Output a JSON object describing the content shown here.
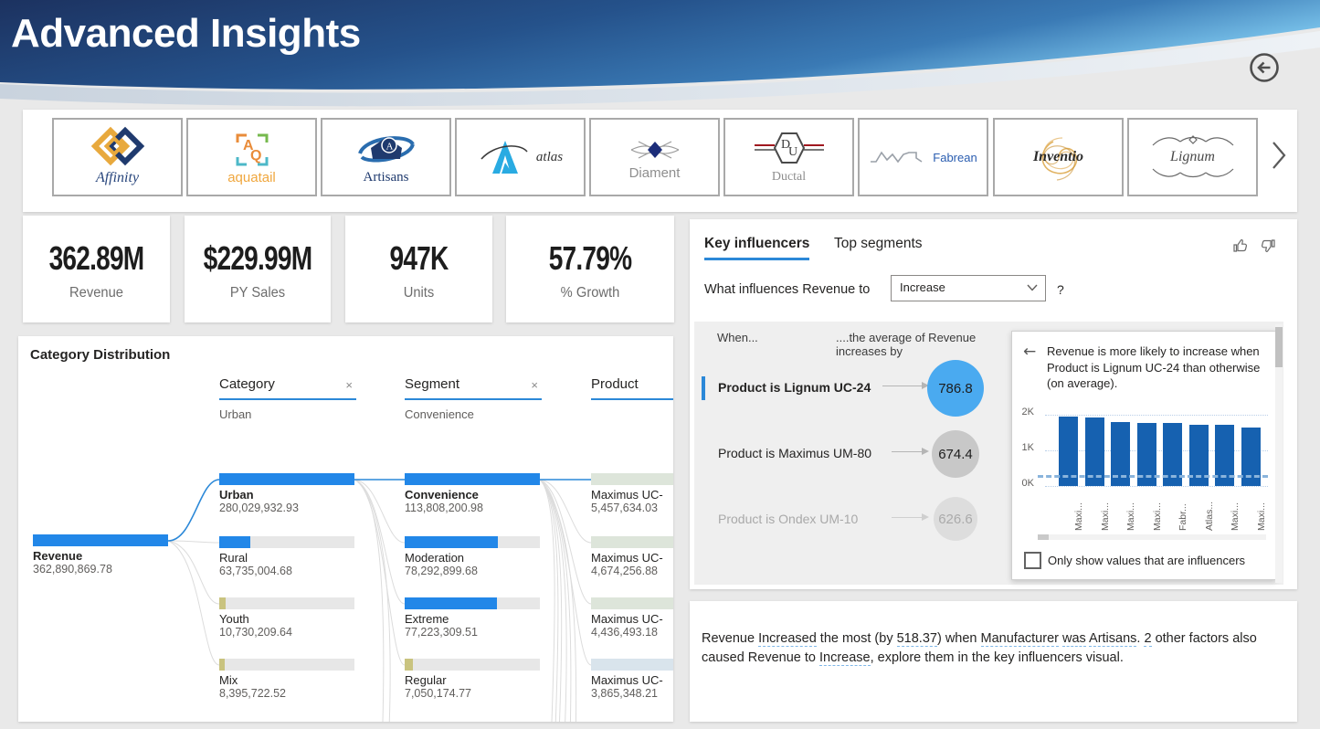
{
  "header": {
    "title": "Advanced Insights"
  },
  "logos": {
    "items": [
      {
        "name": "Affinity"
      },
      {
        "name": "aquatail"
      },
      {
        "name": "Artisans"
      },
      {
        "name": "atlas"
      },
      {
        "name": "Diament"
      },
      {
        "name": "Ductal"
      },
      {
        "name": "Fabrean"
      },
      {
        "name": "Inventio"
      },
      {
        "name": "Lignum"
      }
    ]
  },
  "kpis": [
    {
      "value": "362.89M",
      "label": "Revenue"
    },
    {
      "value": "$229.99M",
      "label": "PY Sales"
    },
    {
      "value": "947K",
      "label": "Units"
    },
    {
      "value": "57.79%",
      "label": "% Growth"
    }
  ],
  "decomposition_tree": {
    "title": "Category Distribution",
    "columns": [
      {
        "name": "Category",
        "selected": "Urban",
        "close": "×"
      },
      {
        "name": "Segment",
        "selected": "Convenience",
        "close": "×"
      },
      {
        "name": "Product",
        "selected": "",
        "close": ""
      }
    ],
    "root": {
      "label": "Revenue",
      "value": "362,890,869.78",
      "fill_pct": 100,
      "fill": "blue"
    },
    "categories": [
      {
        "label": "Urban",
        "value": "280,029,932.93",
        "fill_pct": 100,
        "fill": "blue"
      },
      {
        "label": "Rural",
        "value": "63,735,004.68",
        "fill_pct": 23,
        "fill": "blue"
      },
      {
        "label": "Youth",
        "value": "10,730,209.64",
        "fill_pct": 5,
        "fill": "tan"
      },
      {
        "label": "Mix",
        "value": "8,395,722.52",
        "fill_pct": 4,
        "fill": "tan"
      }
    ],
    "segments": [
      {
        "label": "Convenience",
        "value": "113,808,200.98",
        "fill_pct": 100,
        "fill": "blue"
      },
      {
        "label": "Moderation",
        "value": "78,292,899.68",
        "fill_pct": 69,
        "fill": "blue"
      },
      {
        "label": "Extreme",
        "value": "77,223,309.51",
        "fill_pct": 68,
        "fill": "blue"
      },
      {
        "label": "Regular",
        "value": "7,050,174.77",
        "fill_pct": 6,
        "fill": "tan"
      }
    ],
    "products": [
      {
        "label": "Maximus UC-",
        "value": "5,457,634.03",
        "fill_pct": 100,
        "fill": "sage"
      },
      {
        "label": "Maximus UC-",
        "value": "4,674,256.88",
        "fill_pct": 100,
        "fill": "sage"
      },
      {
        "label": "Maximus UC-",
        "value": "4,436,493.18",
        "fill_pct": 100,
        "fill": "sage"
      },
      {
        "label": "Maximus UC-",
        "value": "3,865,348.21",
        "fill_pct": 100,
        "fill": "lightblue"
      }
    ]
  },
  "key_influencers": {
    "tabs": [
      {
        "label": "Key influencers"
      },
      {
        "label": "Top segments"
      }
    ],
    "question_prefix": "What influences Revenue to",
    "dropdown_value": "Increase",
    "question_suffix": "?",
    "list_header_left": "When...",
    "list_header_right": "....the average of Revenue increases by",
    "influencers": [
      {
        "label": "Product is Lignum UC-24",
        "value": "786.8",
        "state": "selected"
      },
      {
        "label": "Product is Maximus UM-80",
        "value": "674.4",
        "state": "normal"
      },
      {
        "label": "Product is Ondex UM-10",
        "value": "626.6",
        "state": "faded"
      }
    ],
    "detail": {
      "back_icon": "←",
      "text": "Revenue is more likely to increase when Product is Lignum UC-24 than otherwise (on average).",
      "checkbox_label": "Only show values that are influencers"
    }
  },
  "chart_data": {
    "type": "bar",
    "title": "Revenue is more likely to increase when Product is Lignum UC-24 than otherwise (on average).",
    "categories": [
      "Maxi...",
      "Maxi...",
      "Maxi...",
      "Maxi...",
      "Fabr...",
      "Atlas...",
      "Maxi...",
      "Maxi..."
    ],
    "values": [
      1960,
      1930,
      1790,
      1780,
      1760,
      1720,
      1710,
      1640
    ],
    "average_line": 385,
    "yticks": [
      "2K",
      "1K",
      "0K"
    ],
    "ylim": [
      0,
      2000
    ],
    "xlabel": "",
    "ylabel": "",
    "grid": "dotted",
    "bar_color": "#1661b0"
  },
  "smart_narrative": {
    "segments": [
      {
        "text": "Revenue "
      },
      {
        "text": "Increased",
        "u": true
      },
      {
        "text": " the most (by "
      },
      {
        "text": "518.37",
        "u": true
      },
      {
        "text": ") when "
      },
      {
        "text": "Manufacturer",
        "u": true
      },
      {
        "text": " "
      },
      {
        "text": "was",
        "u": true
      },
      {
        "text": " "
      },
      {
        "text": "Artisans",
        "u": true
      },
      {
        "text": ". "
      },
      {
        "text": "2",
        "u": true
      },
      {
        "text": " other factors also caused Revenue to "
      },
      {
        "text": "Increase",
        "u": true
      },
      {
        "text": ", explore them in the key influencers visual."
      }
    ]
  },
  "colors": {
    "accent_blue": "#2b88d8",
    "tree_bar_blue": "#2287e8",
    "tree_bar_tan": "#c9c37f",
    "tree_bar_sage": "#dde5da",
    "tree_bar_lightblue": "#d9e4ec",
    "circle_selected": "#4aaaf0",
    "circle_normal": "#c8c8c8",
    "circle_faded": "#d9d9d9",
    "chart_bar": "#1661b0"
  }
}
